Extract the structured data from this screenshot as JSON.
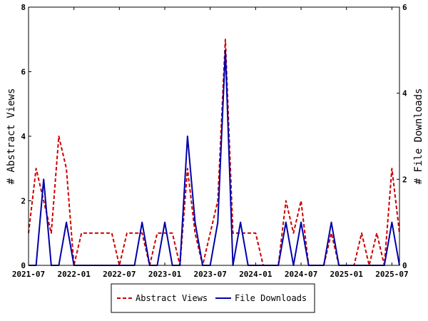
{
  "chart_data": {
    "type": "line",
    "ylabel": "# Abstract Views",
    "y2label": "# File Downloads",
    "ylim": [
      0,
      8
    ],
    "y2lim": [
      0,
      6
    ],
    "yticks": [
      "0",
      "2",
      "4",
      "6",
      "8"
    ],
    "y2ticks": [
      "0",
      "2",
      "4",
      "6"
    ],
    "xticks": [
      "2021-07",
      "2022-01",
      "2022-07",
      "2023-01",
      "2023-07",
      "2024-01",
      "2024-07",
      "2025-01",
      "2025-07"
    ],
    "legend_position": "bottom",
    "x": [
      "2021-07",
      "2021-08",
      "2021-09",
      "2021-10",
      "2021-11",
      "2021-12",
      "2022-01",
      "2022-02",
      "2022-03",
      "2022-04",
      "2022-05",
      "2022-06",
      "2022-07",
      "2022-08",
      "2022-09",
      "2022-10",
      "2022-11",
      "2022-12",
      "2023-01",
      "2023-02",
      "2023-03",
      "2023-04",
      "2023-05",
      "2023-06",
      "2023-07",
      "2023-08",
      "2023-09",
      "2023-10",
      "2023-11",
      "2023-12",
      "2024-01",
      "2024-02",
      "2024-03",
      "2024-04",
      "2024-05",
      "2024-06",
      "2024-07",
      "2024-08",
      "2024-09",
      "2024-10",
      "2024-11",
      "2024-12",
      "2025-01",
      "2025-02",
      "2025-03",
      "2025-04",
      "2025-05",
      "2025-06",
      "2025-07",
      "2025-08"
    ],
    "series": [
      {
        "name": "Abstract Views",
        "axis": "left",
        "color": "#cc0000",
        "dash": true,
        "values": [
          1,
          3,
          2,
          1,
          4,
          3,
          0,
          1,
          1,
          1,
          1,
          1,
          0,
          1,
          1,
          1,
          0,
          1,
          1,
          1,
          0,
          3,
          1,
          0,
          1,
          2,
          7,
          1,
          1,
          1,
          1,
          0,
          0,
          0,
          2,
          1,
          2,
          0,
          0,
          0,
          1,
          0,
          0,
          0,
          1,
          0,
          1,
          0,
          3,
          1
        ]
      },
      {
        "name": "File Downloads",
        "axis": "right",
        "color": "#0000aa",
        "dash": false,
        "values": [
          0,
          0,
          2,
          0,
          0,
          1,
          0,
          0,
          0,
          0,
          0,
          0,
          0,
          0,
          0,
          1,
          0,
          0,
          1,
          0,
          0,
          3,
          1,
          0,
          0,
          1,
          5,
          0,
          1,
          0,
          0,
          0,
          0,
          0,
          1,
          0,
          1,
          0,
          0,
          0,
          1,
          0,
          0,
          0,
          0,
          0,
          0,
          0,
          1,
          0
        ]
      }
    ]
  }
}
